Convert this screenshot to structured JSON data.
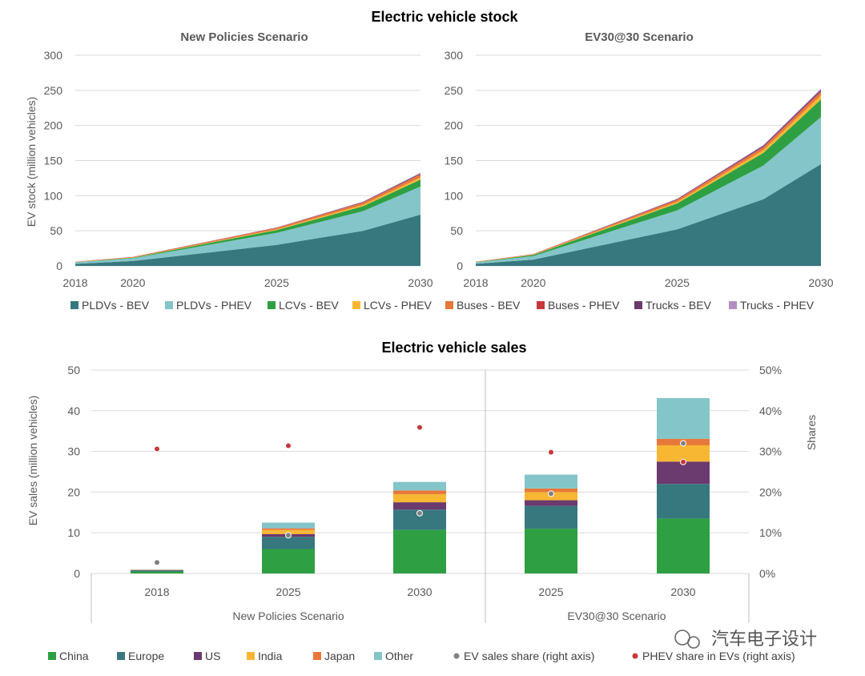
{
  "stock": {
    "title": "Electric vehicle stock",
    "ylabel": "EV stock (million vehicles)",
    "ylim": [
      0,
      300
    ],
    "yticks": [
      0,
      50,
      100,
      150,
      200,
      250,
      300
    ],
    "xticks": [
      2018,
      2020,
      2025,
      2030
    ],
    "legend": [
      "PLDVs - BEV",
      "PLDVs - PHEV",
      "LCVs - BEV",
      "LCVs - PHEV",
      "Buses - BEV",
      "Buses - PHEV",
      "Trucks - BEV",
      "Trucks - PHEV"
    ],
    "colors": [
      "#37787f",
      "#83c5c9",
      "#2ea043",
      "#f7b733",
      "#e8783a",
      "#c8383c",
      "#6b3a6e",
      "#b38fc2"
    ]
  },
  "sales": {
    "title": "Electric vehicle sales",
    "ylabel": "EV sales (million vehicles)",
    "y2label": "Shares",
    "ylim": [
      0,
      50
    ],
    "yticks": [
      0,
      10,
      20,
      30,
      40,
      50
    ],
    "y2ticks": [
      "0%",
      "10%",
      "20%",
      "30%",
      "40%",
      "50%"
    ],
    "legend": [
      "China",
      "Europe",
      "US",
      "India",
      "Japan",
      "Other",
      "EV sales share (right axis)",
      "PHEV share in EVs (right axis)"
    ],
    "colors": [
      "#2ea043",
      "#37787f",
      "#6b3a6e",
      "#f7b733",
      "#e8783a",
      "#83c5c9",
      "#808080",
      "#c8383c"
    ]
  },
  "watermark": "汽车电子设计",
  "chart_data": [
    {
      "type": "area",
      "title": "New Policies Scenario",
      "x": [
        2018,
        2020,
        2025,
        2028,
        2030
      ],
      "series": [
        {
          "name": "PLDVs - BEV",
          "values": [
            3,
            7,
            30,
            50,
            73
          ]
        },
        {
          "name": "PLDVs - PHEV",
          "values": [
            2,
            4,
            17,
            28,
            40
          ]
        },
        {
          "name": "LCVs - BEV",
          "values": [
            0.3,
            0.8,
            4,
            7,
            10
          ]
        },
        {
          "name": "LCVs - PHEV",
          "values": [
            0.1,
            0.2,
            1,
            2,
            3
          ]
        },
        {
          "name": "Buses - BEV",
          "values": [
            0.4,
            0.7,
            2,
            3,
            4
          ]
        },
        {
          "name": "Buses - PHEV",
          "values": [
            0.1,
            0.1,
            0.3,
            0.5,
            0.7
          ]
        },
        {
          "name": "Trucks - BEV",
          "values": [
            0.05,
            0.1,
            0.3,
            0.6,
            1
          ]
        },
        {
          "name": "Trucks - PHEV",
          "values": [
            0.05,
            0.1,
            0.3,
            0.5,
            0.8
          ]
        }
      ],
      "ylim": [
        0,
        300
      ]
    },
    {
      "type": "area",
      "title": "EV30@30 Scenario",
      "x": [
        2018,
        2020,
        2025,
        2028,
        2030
      ],
      "series": [
        {
          "name": "PLDVs - BEV",
          "values": [
            3,
            9,
            52,
            95,
            145
          ]
        },
        {
          "name": "PLDVs - PHEV",
          "values": [
            2,
            5,
            27,
            48,
            67
          ]
        },
        {
          "name": "LCVs - BEV",
          "values": [
            0.3,
            1.5,
            10,
            18,
            25
          ]
        },
        {
          "name": "LCVs - PHEV",
          "values": [
            0.1,
            0.3,
            2,
            4,
            6
          ]
        },
        {
          "name": "Buses - BEV",
          "values": [
            0.4,
            0.8,
            3,
            4,
            5
          ]
        },
        {
          "name": "Buses - PHEV",
          "values": [
            0.1,
            0.1,
            0.4,
            0.7,
            1
          ]
        },
        {
          "name": "Trucks - BEV",
          "values": [
            0.05,
            0.2,
            0.8,
            1.5,
            2
          ]
        },
        {
          "name": "Trucks - PHEV",
          "values": [
            0.05,
            0.1,
            0.5,
            1,
            1.5
          ]
        }
      ],
      "ylim": [
        0,
        300
      ]
    },
    {
      "type": "bar",
      "stacked": true,
      "groups": [
        {
          "name": "New Policies Scenario",
          "categories": [
            "2018",
            "2025",
            "2030"
          ]
        },
        {
          "name": "EV30@30 Scenario",
          "categories": [
            "2025",
            "2030"
          ]
        }
      ],
      "series": [
        {
          "name": "China",
          "values": [
            0.5,
            6,
            10.7,
            11,
            13.5
          ]
        },
        {
          "name": "Europe",
          "values": [
            0.2,
            3,
            5,
            5.6,
            8.5
          ]
        },
        {
          "name": "US",
          "values": [
            0.1,
            0.7,
            1.8,
            1.4,
            5.5
          ]
        },
        {
          "name": "India",
          "values": [
            0.05,
            1,
            2,
            2,
            4
          ]
        },
        {
          "name": "Japan",
          "values": [
            0.05,
            0.4,
            0.9,
            0.9,
            1.6
          ]
        },
        {
          "name": "Other",
          "values": [
            0.1,
            1.4,
            2.1,
            3.4,
            10
          ]
        }
      ],
      "scatter": [
        {
          "name": "EV sales share (right axis)",
          "values": [
            0.027,
            0.094,
            0.148,
            0.196,
            0.32
          ],
          "secondary_values": [
            null,
            null,
            null,
            null,
            0.274
          ]
        },
        {
          "name": "PHEV share in EVs (right axis)",
          "values": [
            0.306,
            0.314,
            0.359,
            0.298,
            0.274
          ]
        }
      ],
      "ylim": [
        0,
        50
      ],
      "y2lim": [
        0,
        0.5
      ]
    }
  ]
}
